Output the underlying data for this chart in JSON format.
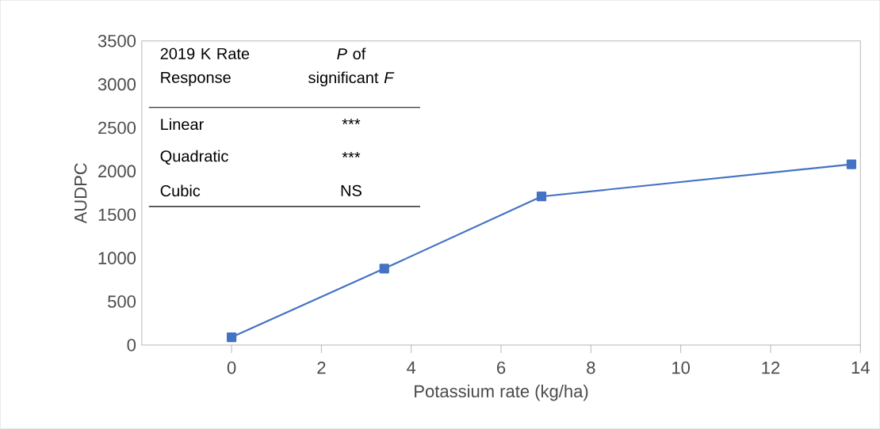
{
  "chart_data": {
    "type": "line",
    "xlabel": "Potassium rate (kg/ha)",
    "ylabel": "AUDPC",
    "x": [
      0,
      3.4,
      6.9,
      13.8
    ],
    "series": [
      {
        "color": "#4472c4",
        "values": [
          90,
          880,
          1710,
          2080
        ]
      }
    ],
    "xlim": [
      -2,
      14
    ],
    "xticks": [
      0,
      2,
      4,
      6,
      8,
      10,
      12,
      14
    ],
    "ylim": [
      0,
      3500
    ],
    "yticks": [
      0,
      500,
      1000,
      1500,
      2000,
      2500,
      3000,
      3500
    ],
    "marker": "square",
    "line_style": "solid",
    "annotations": [
      "2019 K Rate Response",
      "*P* of significant *F*",
      "Linear",
      "***",
      "Quadratic",
      "***",
      "Cubic",
      "NS"
    ]
  }
}
